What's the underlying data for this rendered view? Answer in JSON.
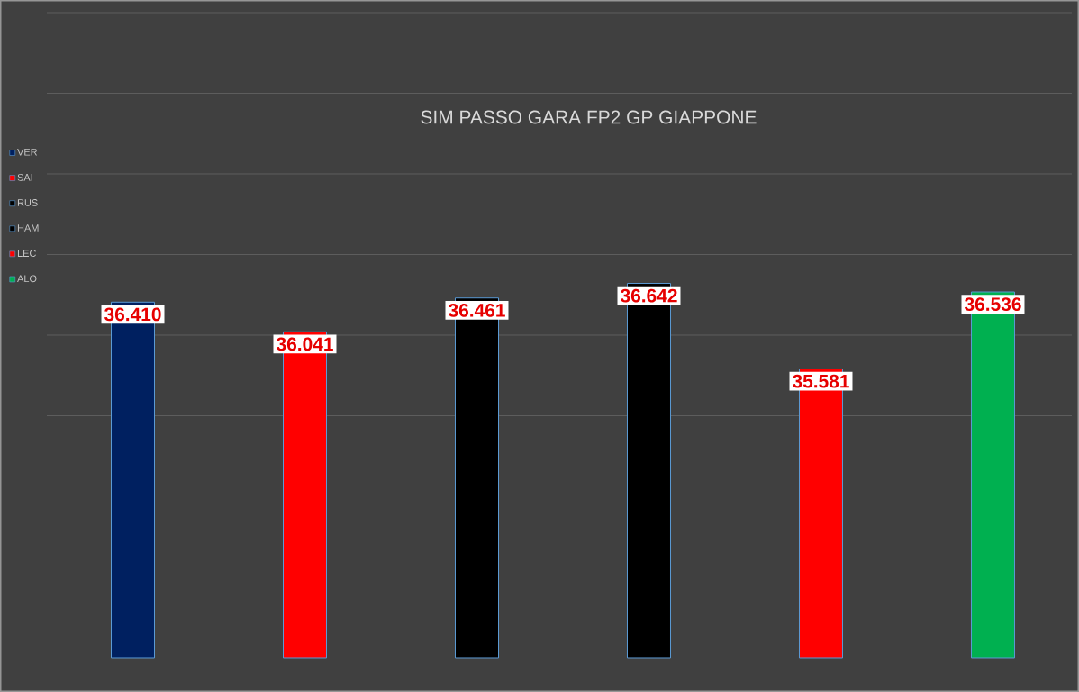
{
  "chart_data": {
    "type": "bar",
    "title": "SIM PASSO GARA FP2 GP GIAPPONE",
    "categories": [
      null,
      null,
      null,
      null,
      null,
      null
    ],
    "series": [
      {
        "name": "VER",
        "color": "#002060",
        "values": [
          36.41,
          null,
          null,
          null,
          null,
          null
        ],
        "value_labels": [
          "36.410",
          null,
          null,
          null,
          null,
          null
        ]
      },
      {
        "name": "SAI",
        "color": "#ff0000",
        "values": [
          null,
          36.041,
          null,
          null,
          null,
          null
        ],
        "value_labels": [
          null,
          "36.041",
          null,
          null,
          null,
          null
        ]
      },
      {
        "name": "RUS",
        "color": "#000000",
        "values": [
          null,
          null,
          36.461,
          null,
          null,
          null
        ],
        "value_labels": [
          null,
          null,
          "36.461",
          null,
          null,
          null
        ]
      },
      {
        "name": "HAM",
        "color": "#000000",
        "values": [
          null,
          null,
          null,
          36.642,
          null,
          null
        ],
        "value_labels": [
          null,
          null,
          null,
          "36.642",
          null,
          null
        ]
      },
      {
        "name": "LEC",
        "color": "#ff0000",
        "values": [
          null,
          null,
          null,
          null,
          35.581,
          null
        ],
        "value_labels": [
          null,
          null,
          null,
          null,
          "35.581",
          null
        ]
      },
      {
        "name": "ALO",
        "color": "#00b050",
        "values": [
          null,
          null,
          null,
          null,
          null,
          36.536
        ],
        "value_labels": [
          null,
          null,
          null,
          null,
          null,
          "36.536"
        ]
      }
    ],
    "ylim": [
      32,
      40
    ],
    "yticks": [
      {
        "value": 35,
        "label": null
      },
      {
        "value": 36,
        "label": null
      },
      {
        "value": 37,
        "label": null
      },
      {
        "value": 38,
        "label": null
      },
      {
        "value": 39,
        "label": null
      },
      {
        "value": 40,
        "label": null
      }
    ],
    "stacked": true,
    "grid": "y",
    "legend": "left"
  }
}
